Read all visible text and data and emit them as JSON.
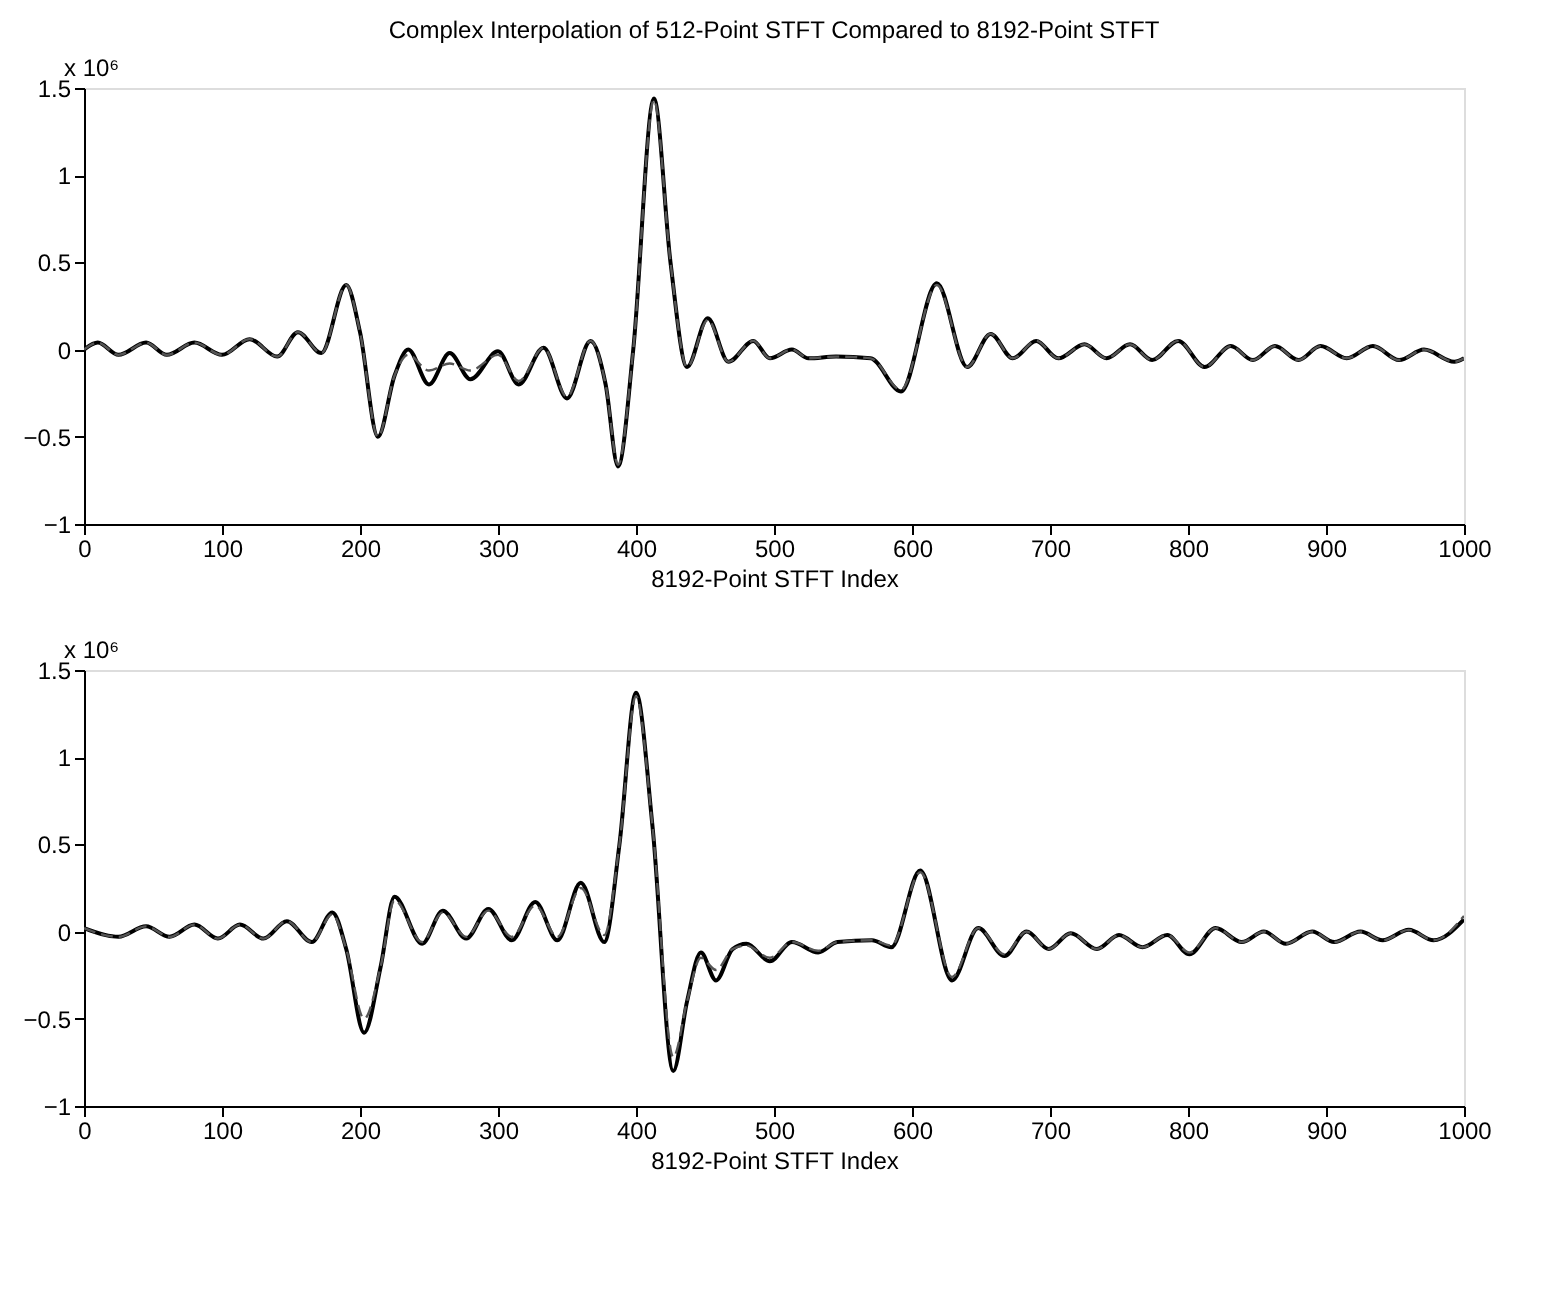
{
  "chart_data": [
    {
      "type": "line",
      "title": "Complex Interpolation of 512-Point STFT Compared to 8192-Point STFT",
      "xlabel": "8192-Point STFT Index",
      "annotations": [
        "x 10⁶"
      ],
      "xlim": [
        0,
        1000
      ],
      "xticks": [
        0,
        100,
        200,
        300,
        400,
        500,
        600,
        700,
        800,
        900,
        1000
      ],
      "ylim": [
        -1,
        1.5
      ],
      "yticks": [
        -1,
        -0.5,
        0,
        0.5,
        1,
        1.5
      ],
      "grid": false,
      "legend": false,
      "marker": "none",
      "series": [
        {
          "color": "#000000",
          "line_style": "solid",
          "x": [
            0,
            10,
            25,
            45,
            60,
            80,
            100,
            120,
            140,
            155,
            172,
            190,
            200,
            213,
            225,
            235,
            250,
            265,
            280,
            300,
            315,
            333,
            350,
            367,
            378,
            387,
            398,
            413,
            425,
            437,
            452,
            467,
            485,
            497,
            513,
            525,
            545,
            570,
            592,
            618,
            640,
            657,
            673,
            690,
            706,
            725,
            741,
            758,
            774,
            793,
            812,
            831,
            847,
            863,
            880,
            896,
            915,
            934,
            953,
            971,
            993,
            1000
          ],
          "values": [
            0,
            0.04,
            -0.03,
            0.04,
            -0.03,
            0.04,
            -0.03,
            0.06,
            -0.04,
            0.1,
            -0.02,
            0.37,
            0.1,
            -0.5,
            -0.15,
            0,
            -0.2,
            -0.02,
            -0.17,
            -0.01,
            -0.2,
            0.01,
            -0.28,
            0.05,
            -0.2,
            -0.67,
            0,
            1.44,
            0.5,
            -0.1,
            0.18,
            -0.07,
            0.05,
            -0.05,
            0,
            -0.05,
            -0.04,
            -0.05,
            -0.24,
            0.38,
            -0.1,
            0.09,
            -0.05,
            0.05,
            -0.05,
            0.03,
            -0.05,
            0.03,
            -0.06,
            0.05,
            -0.1,
            0.02,
            -0.06,
            0.02,
            -0.06,
            0.02,
            -0.05,
            0.02,
            -0.06,
            0,
            -0.07,
            -0.05
          ]
        },
        {
          "color": "#555555",
          "line_style": "dashed",
          "x": [
            0,
            10,
            25,
            45,
            60,
            80,
            100,
            120,
            140,
            155,
            172,
            190,
            200,
            213,
            225,
            235,
            250,
            265,
            280,
            300,
            315,
            333,
            350,
            367,
            378,
            387,
            398,
            413,
            425,
            437,
            452,
            467,
            485,
            497,
            513,
            525,
            545,
            570,
            592,
            618,
            640,
            657,
            673,
            690,
            706,
            725,
            741,
            758,
            774,
            793,
            812,
            831,
            847,
            863,
            880,
            896,
            915,
            934,
            953,
            971,
            993,
            1000
          ],
          "values": [
            0,
            0.04,
            -0.03,
            0.04,
            -0.03,
            0.04,
            -0.03,
            0.06,
            -0.04,
            0.1,
            -0.02,
            0.37,
            0.1,
            -0.5,
            -0.15,
            -0.03,
            -0.12,
            -0.08,
            -0.12,
            -0.03,
            -0.18,
            0.01,
            -0.27,
            0.05,
            -0.2,
            -0.66,
            0,
            1.43,
            0.5,
            -0.1,
            0.17,
            -0.07,
            0.05,
            -0.05,
            0,
            -0.05,
            -0.04,
            -0.05,
            -0.23,
            0.37,
            -0.1,
            0.09,
            -0.05,
            0.05,
            -0.05,
            0.03,
            -0.05,
            0.03,
            -0.06,
            0.05,
            -0.1,
            0.02,
            -0.06,
            0.02,
            -0.06,
            0.02,
            -0.05,
            0.02,
            -0.06,
            0,
            -0.07,
            -0.05
          ]
        }
      ]
    },
    {
      "type": "line",
      "xlabel": "8192-Point STFT Index",
      "annotations": [
        "x 10⁶"
      ],
      "xlim": [
        0,
        1000
      ],
      "xticks": [
        0,
        100,
        200,
        300,
        400,
        500,
        600,
        700,
        800,
        900,
        1000
      ],
      "ylim": [
        -1,
        1.5
      ],
      "yticks": [
        -1,
        -0.5,
        0,
        0.5,
        1,
        1.5
      ],
      "grid": false,
      "legend": false,
      "marker": "none",
      "series": [
        {
          "color": "#000000",
          "line_style": "solid",
          "x": [
            0,
            25,
            45,
            62,
            80,
            97,
            113,
            130,
            147,
            165,
            180,
            190,
            203,
            215,
            225,
            245,
            260,
            277,
            293,
            310,
            327,
            343,
            360,
            377,
            388,
            400,
            412,
            427,
            437,
            447,
            458,
            470,
            480,
            497,
            513,
            532,
            546,
            571,
            585,
            606,
            629,
            648,
            667,
            683,
            699,
            715,
            734,
            750,
            767,
            785,
            801,
            820,
            839,
            855,
            871,
            890,
            906,
            925,
            941,
            960,
            978,
            1000
          ],
          "values": [
            0.02,
            -0.03,
            0.03,
            -0.03,
            0.04,
            -0.04,
            0.04,
            -0.04,
            0.06,
            -0.06,
            0.11,
            -0.1,
            -0.58,
            -0.2,
            0.2,
            -0.07,
            0.12,
            -0.04,
            0.13,
            -0.05,
            0.17,
            -0.05,
            0.28,
            -0.06,
            0.5,
            1.37,
            0.6,
            -0.8,
            -0.4,
            -0.12,
            -0.28,
            -0.1,
            -0.07,
            -0.17,
            -0.06,
            -0.12,
            -0.06,
            -0.05,
            -0.09,
            0.35,
            -0.28,
            0.02,
            -0.14,
            0,
            -0.1,
            -0.01,
            -0.1,
            -0.02,
            -0.09,
            -0.02,
            -0.13,
            0.02,
            -0.06,
            0,
            -0.07,
            0,
            -0.06,
            0,
            -0.05,
            0.01,
            -0.05,
            0.07
          ]
        },
        {
          "color": "#555555",
          "line_style": "dashed",
          "x": [
            0,
            25,
            45,
            62,
            80,
            97,
            113,
            130,
            147,
            165,
            180,
            190,
            203,
            215,
            225,
            245,
            260,
            277,
            293,
            310,
            327,
            343,
            360,
            377,
            388,
            400,
            412,
            427,
            437,
            447,
            458,
            470,
            480,
            497,
            513,
            532,
            546,
            571,
            585,
            606,
            629,
            648,
            667,
            683,
            699,
            715,
            734,
            750,
            767,
            785,
            801,
            820,
            839,
            855,
            871,
            890,
            906,
            925,
            941,
            960,
            978,
            1000
          ],
          "values": [
            0.02,
            -0.03,
            0.03,
            -0.03,
            0.04,
            -0.04,
            0.04,
            -0.04,
            0.06,
            -0.06,
            0.1,
            -0.1,
            -0.5,
            -0.2,
            0.18,
            -0.06,
            0.11,
            -0.03,
            0.12,
            -0.03,
            0.15,
            -0.03,
            0.25,
            -0.02,
            0.5,
            1.35,
            0.6,
            -0.72,
            -0.4,
            -0.15,
            -0.22,
            -0.1,
            -0.08,
            -0.15,
            -0.06,
            -0.11,
            -0.06,
            -0.05,
            -0.08,
            0.34,
            -0.26,
            0.02,
            -0.13,
            0,
            -0.1,
            -0.01,
            -0.1,
            -0.02,
            -0.09,
            -0.02,
            -0.12,
            0.02,
            -0.06,
            0,
            -0.07,
            0,
            -0.06,
            0,
            -0.05,
            0.01,
            -0.05,
            0.09
          ]
        }
      ]
    }
  ]
}
